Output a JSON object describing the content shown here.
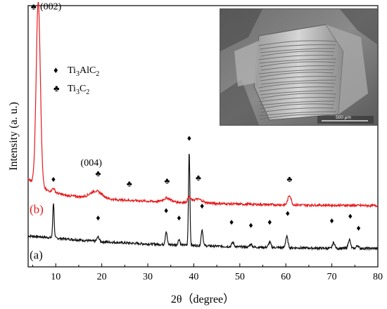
{
  "chart_data": {
    "type": "line",
    "xlabel": "2θ（degree）",
    "ylabel": "Intensity (a. u.)",
    "xlim": [
      4,
      80
    ],
    "x_ticks": [
      10,
      20,
      30,
      40,
      50,
      60,
      70,
      80
    ],
    "y_ticks_shown": false,
    "grid": false,
    "colors": {
      "a": "#111111",
      "b": "#e8191c"
    },
    "series": [
      {
        "name": "(a)",
        "color": "#111111",
        "baseline": [
          [
            4,
            23
          ],
          [
            10,
            20
          ],
          [
            20,
            15
          ],
          [
            30,
            12
          ],
          [
            40,
            10
          ],
          [
            50,
            8
          ],
          [
            60,
            7
          ],
          [
            70,
            6
          ],
          [
            80,
            6
          ]
        ],
        "peaks": [
          {
            "x": 9.5,
            "h": 48,
            "w": 0.15
          },
          {
            "x": 19.2,
            "h": 6,
            "w": 0.25
          },
          {
            "x": 34.0,
            "h": 18,
            "w": 0.2
          },
          {
            "x": 36.8,
            "h": 8,
            "w": 0.2
          },
          {
            "x": 39.0,
            "h": 128,
            "w": 0.15
          },
          {
            "x": 41.8,
            "h": 22,
            "w": 0.2
          },
          {
            "x": 48.5,
            "h": 6,
            "w": 0.25
          },
          {
            "x": 52.4,
            "h": 4,
            "w": 0.25
          },
          {
            "x": 56.5,
            "h": 7,
            "w": 0.25
          },
          {
            "x": 60.2,
            "h": 15,
            "w": 0.25
          },
          {
            "x": 70.4,
            "h": 8,
            "w": 0.25
          },
          {
            "x": 73.8,
            "h": 12,
            "w": 0.25
          },
          {
            "x": 75.6,
            "h": 4,
            "w": 0.25
          }
        ]
      },
      {
        "name": "(b)",
        "color": "#e8191c",
        "baseline": [
          [
            4,
            100
          ],
          [
            8,
            85
          ],
          [
            12,
            78
          ],
          [
            20,
            73
          ],
          [
            30,
            70
          ],
          [
            40,
            68
          ],
          [
            50,
            66
          ],
          [
            60,
            65
          ],
          [
            80,
            64
          ]
        ],
        "peaks": [
          {
            "x": 6.2,
            "h": 250,
            "w": 0.45
          },
          {
            "x": 9.5,
            "h": 5,
            "w": 0.3
          },
          {
            "x": 18.8,
            "h": 10,
            "w": 1.3
          },
          {
            "x": 34.2,
            "h": 5,
            "w": 0.8
          },
          {
            "x": 39.0,
            "h": 7,
            "w": 0.3
          },
          {
            "x": 40.8,
            "h": 5,
            "w": 1.0
          },
          {
            "x": 60.8,
            "h": 13,
            "w": 0.35
          }
        ]
      }
    ],
    "peak_markers": [
      {
        "symbol": "♣",
        "x": 5.2,
        "y": 330
      },
      {
        "symbol": "♣",
        "x": 19.2,
        "y": 104
      },
      {
        "symbol": "♣",
        "x": 26.0,
        "y": 90
      },
      {
        "symbol": "♣",
        "x": 34.2,
        "y": 94
      },
      {
        "symbol": "♣",
        "x": 41.0,
        "y": 98
      },
      {
        "symbol": "♣",
        "x": 60.8,
        "y": 96
      },
      {
        "symbol": "♦",
        "x": 9.5,
        "y": 96
      },
      {
        "symbol": "♦",
        "x": 19.2,
        "y": 44
      },
      {
        "symbol": "♦",
        "x": 34.0,
        "y": 54
      },
      {
        "symbol": "♦",
        "x": 36.8,
        "y": 44
      },
      {
        "symbol": "♦",
        "x": 39.0,
        "y": 152
      },
      {
        "symbol": "♦",
        "x": 41.8,
        "y": 60
      },
      {
        "symbol": "♦",
        "x": 48.2,
        "y": 38
      },
      {
        "symbol": "♦",
        "x": 52.4,
        "y": 34
      },
      {
        "symbol": "♦",
        "x": 56.5,
        "y": 38
      },
      {
        "symbol": "♦",
        "x": 60.4,
        "y": 50
      },
      {
        "symbol": "♦",
        "x": 70.0,
        "y": 40
      },
      {
        "symbol": "♦",
        "x": 74.0,
        "y": 46
      },
      {
        "symbol": "♦",
        "x": 75.8,
        "y": 30
      }
    ],
    "annotations": [
      {
        "text": "(002)",
        "x": 6.6,
        "y": 330
      },
      {
        "text": "(004)",
        "x": 15.4,
        "y": 118
      }
    ],
    "series_labels": [
      {
        "text": "(b)",
        "color": "#e8191c",
        "x": 4.3,
        "y": 54
      },
      {
        "text": "(a)",
        "color": "#111111",
        "x": 4.3,
        "y": -8
      }
    ],
    "legend": {
      "placement": "top-left",
      "entries": [
        {
          "symbol": "♦",
          "main": "Ti",
          "sub1": "3",
          "mid": "AlC",
          "sub2": "2"
        },
        {
          "symbol": "♣",
          "main": "Ti",
          "sub1": "3",
          "mid": "C",
          "sub2": "2"
        }
      ]
    },
    "inset": {
      "placement": "top-right",
      "scale_bar_label": "500 μm"
    }
  }
}
